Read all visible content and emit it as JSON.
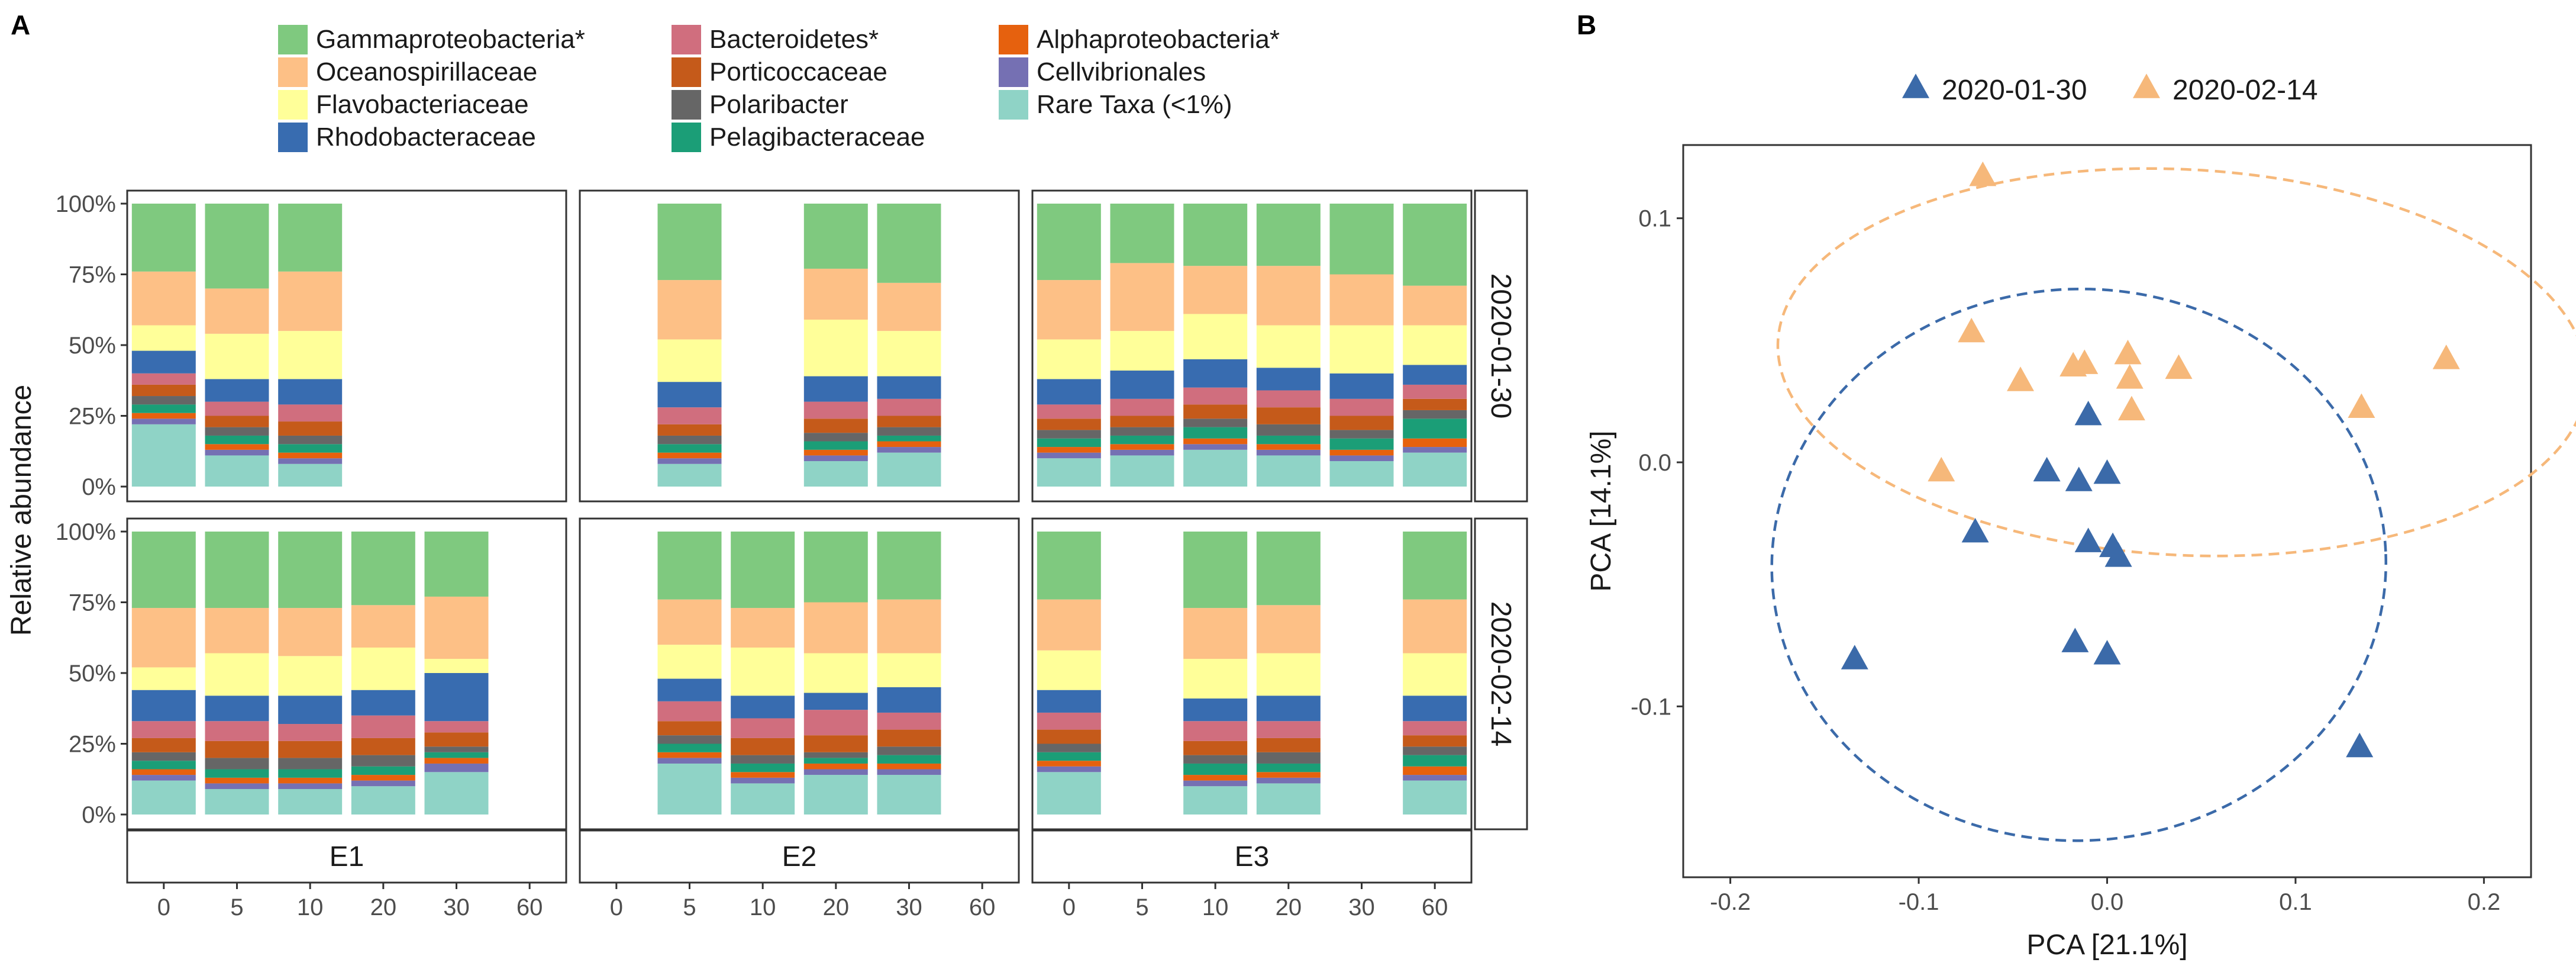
{
  "panels": {
    "a_label": "A",
    "b_label": "B"
  },
  "legend_a": [
    {
      "name": "Gammaproteobacteria*",
      "color": "#7fc97f"
    },
    {
      "name": "Oceanospirillaceae",
      "color": "#fdc086"
    },
    {
      "name": "Flavobacteriaceae",
      "color": "#ffff99"
    },
    {
      "name": "Rhodobacteraceae",
      "color": "#386cb0"
    },
    {
      "name": "Bacteroidetes*",
      "color": "#d06e7e"
    },
    {
      "name": "Porticoccaceae",
      "color": "#c55a1a"
    },
    {
      "name": "Polaribacter",
      "color": "#666666"
    },
    {
      "name": "Pelagibacteraceae",
      "color": "#1b9e77"
    },
    {
      "name": "Alphaproteobacteria*",
      "color": "#e6610e"
    },
    {
      "name": "Cellvibrionales",
      "color": "#7570b3"
    },
    {
      "name": "Rare Taxa (<1%)",
      "color": "#8fd3c6"
    }
  ],
  "chart_data": [
    {
      "type": "bar",
      "stacked": true,
      "title": "",
      "ylabel": "Relative abundance",
      "xlabel": "",
      "ylim": [
        0,
        100
      ],
      "y_ticks": [
        "0%",
        "25%",
        "50%",
        "75%",
        "100%"
      ],
      "categories": [
        "0",
        "5",
        "10",
        "20",
        "30",
        "60"
      ],
      "facet_rows": [
        "2020-01-30",
        "2020-02-14"
      ],
      "facet_cols": [
        "E1",
        "E2",
        "E3"
      ],
      "series_order": [
        "Rare Taxa (<1%)",
        "Cellvibrionales",
        "Alphaproteobacteria*",
        "Pelagibacteraceae",
        "Polaribacter",
        "Porticoccaceae",
        "Bacteroidetes*",
        "Rhodobacteraceae",
        "Flavobacteriaceae",
        "Oceanospirillaceae",
        "Gammaproteobacteria*"
      ],
      "facets": [
        {
          "row": "2020-01-30",
          "col": "E1",
          "bars": [
            {
              "x": "0",
              "values": [
                22,
                2,
                2,
                3,
                3,
                4,
                4,
                8,
                9,
                19,
                24
              ]
            },
            {
              "x": "5",
              "values": [
                11,
                2,
                2,
                3,
                3,
                4,
                5,
                8,
                16,
                16,
                30
              ]
            },
            {
              "x": "10",
              "values": [
                8,
                2,
                2,
                3,
                3,
                5,
                6,
                9,
                17,
                21,
                24
              ]
            }
          ]
        },
        {
          "row": "2020-01-30",
          "col": "E2",
          "bars": [
            {
              "x": "5",
              "values": [
                8,
                2,
                2,
                3,
                3,
                4,
                6,
                9,
                15,
                21,
                27
              ]
            },
            {
              "x": "20",
              "values": [
                9,
                2,
                2,
                3,
                3,
                5,
                6,
                9,
                20,
                18,
                23
              ]
            },
            {
              "x": "30",
              "values": [
                12,
                2,
                2,
                2,
                3,
                4,
                6,
                8,
                16,
                17,
                28
              ]
            }
          ]
        },
        {
          "row": "2020-01-30",
          "col": "E3",
          "bars": [
            {
              "x": "0",
              "values": [
                10,
                2,
                2,
                3,
                3,
                4,
                5,
                9,
                14,
                21,
                27
              ]
            },
            {
              "x": "5",
              "values": [
                11,
                2,
                2,
                3,
                3,
                4,
                6,
                10,
                14,
                24,
                21
              ]
            },
            {
              "x": "10",
              "values": [
                13,
                2,
                2,
                4,
                3,
                5,
                6,
                10,
                16,
                17,
                22
              ]
            },
            {
              "x": "20",
              "values": [
                11,
                2,
                2,
                3,
                4,
                6,
                6,
                8,
                15,
                21,
                22
              ]
            },
            {
              "x": "30",
              "values": [
                9,
                2,
                2,
                4,
                3,
                5,
                6,
                9,
                17,
                18,
                25
              ]
            },
            {
              "x": "60",
              "values": [
                12,
                2,
                3,
                7,
                3,
                4,
                5,
                7,
                14,
                14,
                29
              ]
            }
          ]
        },
        {
          "row": "2020-02-14",
          "col": "E1",
          "bars": [
            {
              "x": "0",
              "values": [
                12,
                2,
                2,
                3,
                3,
                5,
                6,
                11,
                8,
                21,
                27
              ]
            },
            {
              "x": "5",
              "values": [
                9,
                2,
                2,
                3,
                4,
                6,
                7,
                9,
                15,
                16,
                27
              ]
            },
            {
              "x": "10",
              "values": [
                9,
                2,
                2,
                3,
                4,
                6,
                6,
                10,
                14,
                17,
                27
              ]
            },
            {
              "x": "20",
              "values": [
                10,
                2,
                2,
                3,
                4,
                6,
                8,
                9,
                15,
                15,
                26
              ]
            },
            {
              "x": "30",
              "values": [
                15,
                3,
                2,
                2,
                2,
                5,
                4,
                17,
                5,
                22,
                23
              ]
            }
          ]
        },
        {
          "row": "2020-02-14",
          "col": "E2",
          "bars": [
            {
              "x": "5",
              "values": [
                18,
                2,
                2,
                3,
                3,
                5,
                7,
                8,
                12,
                16,
                24
              ]
            },
            {
              "x": "10",
              "values": [
                11,
                2,
                2,
                3,
                3,
                6,
                7,
                8,
                17,
                14,
                27
              ]
            },
            {
              "x": "20",
              "values": [
                14,
                2,
                2,
                2,
                2,
                6,
                9,
                6,
                14,
                18,
                25
              ]
            },
            {
              "x": "30",
              "values": [
                14,
                2,
                2,
                3,
                3,
                6,
                6,
                9,
                12,
                19,
                24
              ]
            }
          ]
        },
        {
          "row": "2020-02-14",
          "col": "E3",
          "bars": [
            {
              "x": "0",
              "values": [
                15,
                2,
                2,
                3,
                3,
                5,
                6,
                8,
                14,
                18,
                24
              ]
            },
            {
              "x": "10",
              "values": [
                10,
                2,
                2,
                4,
                3,
                5,
                7,
                8,
                14,
                18,
                27
              ]
            },
            {
              "x": "20",
              "values": [
                11,
                2,
                2,
                3,
                4,
                5,
                6,
                9,
                15,
                17,
                26
              ]
            },
            {
              "x": "60",
              "values": [
                12,
                2,
                3,
                4,
                3,
                4,
                5,
                9,
                15,
                19,
                24
              ]
            }
          ]
        }
      ]
    },
    {
      "type": "scatter",
      "title": "",
      "xlabel": "PCA [21.1%]",
      "ylabel": "PCA [14.1%]",
      "xlim": [
        -0.225,
        0.225
      ],
      "ylim": [
        -0.17,
        0.13
      ],
      "x_ticks": [
        -0.2,
        -0.1,
        0.0,
        0.1,
        0.2
      ],
      "x_tick_labels": [
        "-0.2",
        "-0.1",
        "0.0",
        "0.1",
        "0.2"
      ],
      "y_ticks": [
        -0.1,
        0.0,
        0.1
      ],
      "y_tick_labels": [
        "-0.1",
        "0.0",
        "0.1"
      ],
      "legend_position": "top",
      "series": [
        {
          "name": "2020-01-30",
          "color": "#3b6aa9",
          "points": [
            [
              -0.01,
              0.019
            ],
            [
              -0.032,
              -0.004
            ],
            [
              -0.015,
              -0.008
            ],
            [
              0.0,
              -0.005
            ],
            [
              -0.07,
              -0.029
            ],
            [
              -0.01,
              -0.033
            ],
            [
              0.003,
              -0.035
            ],
            [
              0.006,
              -0.039
            ],
            [
              -0.017,
              -0.074
            ],
            [
              0.0,
              -0.079
            ],
            [
              -0.134,
              -0.081
            ],
            [
              0.134,
              -0.117
            ]
          ],
          "ellipse": {
            "cx": -0.015,
            "cy": -0.042,
            "rx": 0.163,
            "ry": 0.113,
            "angle_deg": -2
          }
        },
        {
          "name": "2020-02-14",
          "color": "#f6b87a",
          "points": [
            [
              -0.066,
              0.117
            ],
            [
              -0.072,
              0.053
            ],
            [
              -0.046,
              0.033
            ],
            [
              -0.018,
              0.039
            ],
            [
              -0.012,
              0.04
            ],
            [
              0.011,
              0.044
            ],
            [
              0.012,
              0.034
            ],
            [
              0.013,
              0.021
            ],
            [
              0.038,
              0.038
            ],
            [
              0.135,
              0.022
            ],
            [
              0.18,
              0.042
            ],
            [
              -0.088,
              -0.004
            ]
          ],
          "ellipse": {
            "cx": 0.04,
            "cy": 0.041,
            "rx": 0.215,
            "ry": 0.079,
            "angle_deg": 3
          }
        }
      ]
    }
  ]
}
